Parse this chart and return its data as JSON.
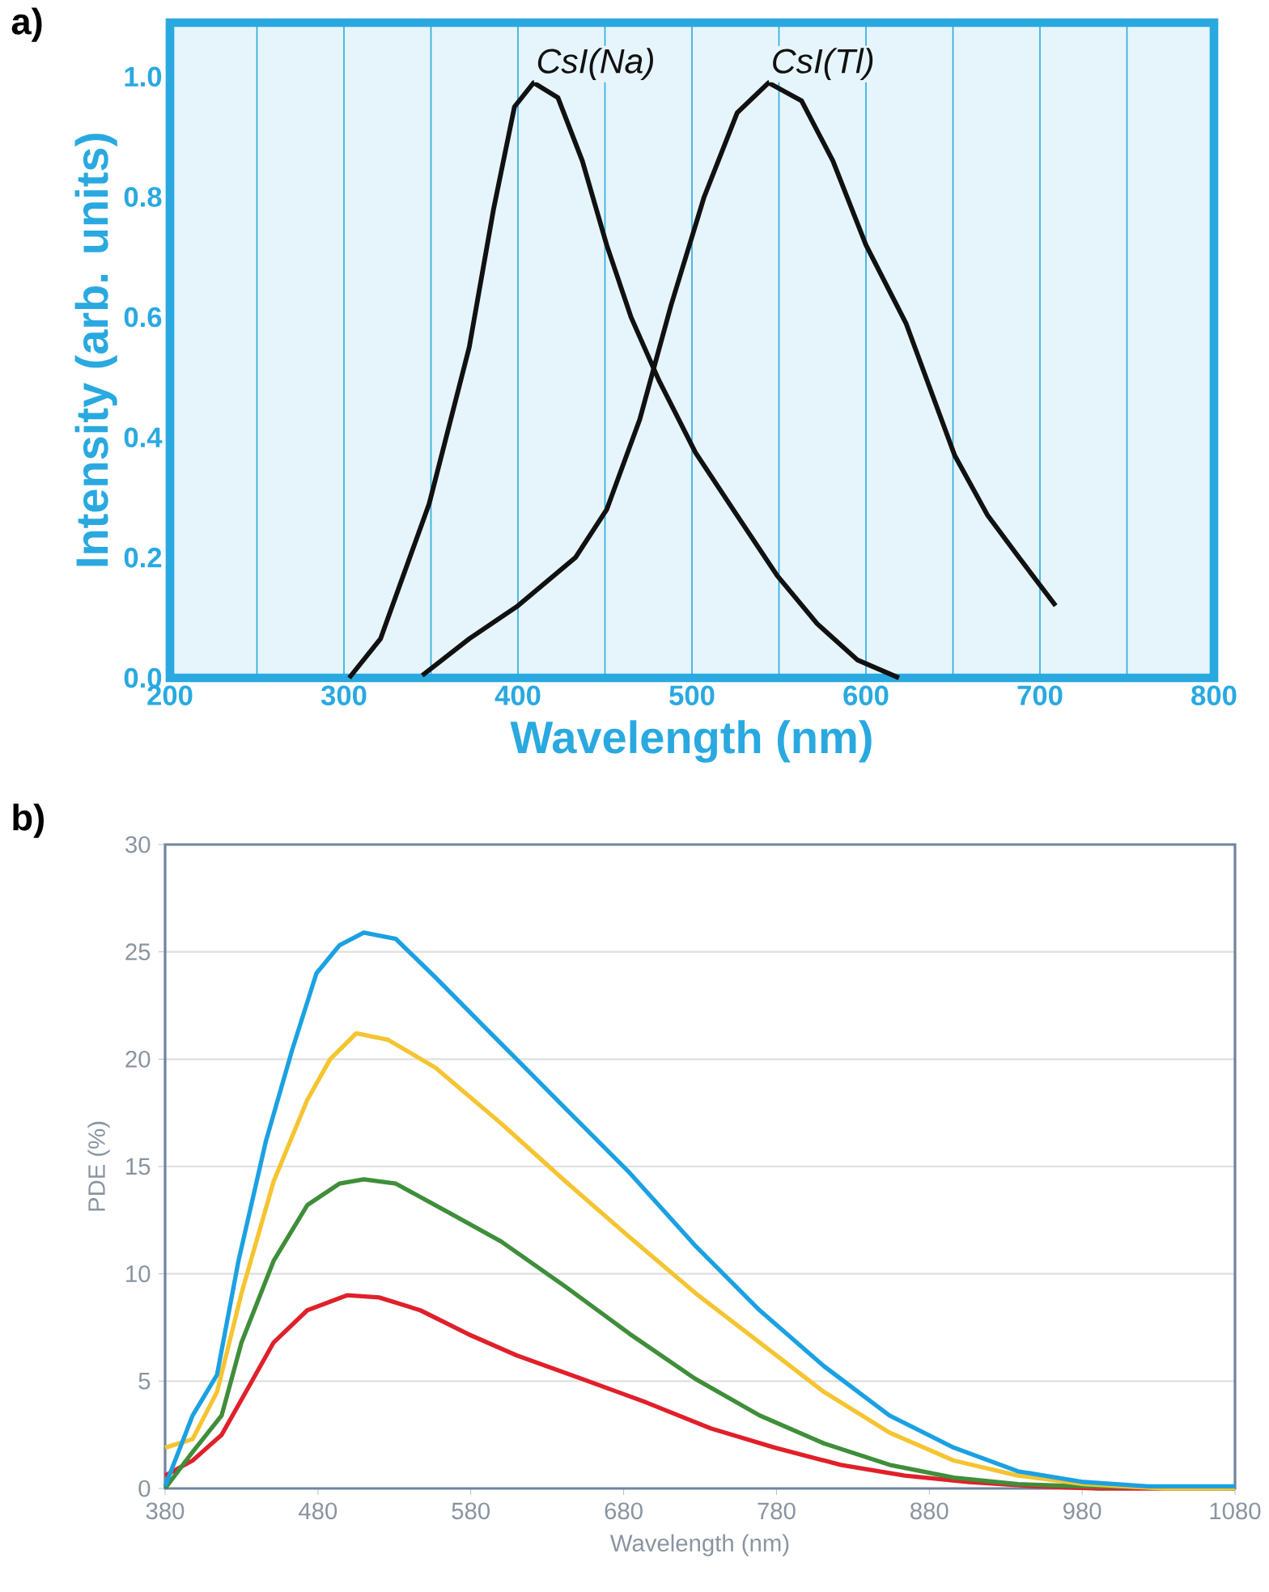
{
  "chart_data": [
    {
      "type": "line",
      "title": "a)",
      "xlabel": "Wavelength (nm)",
      "ylabel": "Intensity (arb. units)",
      "xlim": [
        200,
        800
      ],
      "ylim": [
        0,
        1.09
      ],
      "xticks": [
        200,
        {
          "value": 250,
          "label": null
        },
        300,
        {
          "value": 350,
          "label": null
        },
        400,
        {
          "value": 450,
          "label": null
        },
        500,
        {
          "value": 550,
          "label": null
        },
        600,
        {
          "value": 650,
          "label": null
        },
        700,
        {
          "value": 750,
          "label": null
        },
        800
      ],
      "yticks": [
        {
          "value": 0,
          "label": "0.0"
        },
        0.2,
        0.4,
        0.6,
        0.8,
        {
          "value": 1,
          "label": "1.0"
        }
      ],
      "grid": "x",
      "series": [
        {
          "name": "CsI(Na)",
          "color": "#111111",
          "x": [
            303,
            321,
            349,
            372,
            386,
            398,
            409,
            423,
            437,
            451,
            465,
            481,
            502,
            526,
            549,
            572,
            595,
            619
          ],
          "values": [
            0,
            0.065,
            0.29,
            0.55,
            0.78,
            0.95,
            0.99,
            0.965,
            0.86,
            0.72,
            0.6,
            0.495,
            0.375,
            0.27,
            0.17,
            0.09,
            0.03,
            0
          ]
        },
        {
          "name": "CsI(Tl)",
          "color": "#111111",
          "x": [
            345,
            372,
            400,
            433,
            451,
            470,
            488,
            507,
            526,
            544,
            563,
            581,
            600,
            623,
            651,
            670,
            688,
            709
          ],
          "values": [
            0.004,
            0.065,
            0.12,
            0.2,
            0.28,
            0.43,
            0.62,
            0.8,
            0.94,
            0.99,
            0.96,
            0.86,
            0.72,
            0.59,
            0.37,
            0.27,
            0.2,
            0.12
          ]
        }
      ]
    },
    {
      "type": "line",
      "title": "b)",
      "xlabel": "Wavelength (nm)",
      "ylabel": "PDE (%)",
      "xlim": [
        380,
        1080
      ],
      "ylim": [
        0,
        30
      ],
      "xticks": [
        380,
        480,
        580,
        680,
        780,
        880,
        980,
        1080
      ],
      "yticks": [
        0,
        5,
        10,
        15,
        20,
        25,
        30
      ],
      "grid": "y",
      "series": [
        {
          "color": "#e0202a",
          "x": [
            380,
            398,
            417,
            436,
            451,
            473,
            499,
            520,
            547,
            578,
            610,
            653,
            695,
            737,
            779,
            822,
            864,
            906,
            949,
            991,
            1080
          ],
          "values": [
            0.6,
            1.3,
            2.5,
            4.9,
            6.8,
            8.3,
            9.0,
            8.9,
            8.3,
            7.2,
            6.2,
            5.1,
            4.0,
            2.8,
            1.9,
            1.1,
            0.6,
            0.3,
            0.1,
            0,
            0
          ]
        },
        {
          "color": "#3f8e3a",
          "x": [
            380,
            398,
            417,
            430,
            451,
            473,
            494,
            510,
            531,
            567,
            600,
            642,
            684,
            727,
            769,
            811,
            854,
            896,
            938,
            981,
            1080
          ],
          "values": [
            0,
            1.7,
            3.4,
            6.8,
            10.6,
            13.2,
            14.2,
            14.4,
            14.2,
            12.8,
            11.5,
            9.4,
            7.2,
            5.1,
            3.4,
            2.1,
            1.1,
            0.5,
            0.2,
            0.1,
            0
          ]
        },
        {
          "color": "#f5c431",
          "x": [
            380,
            398,
            414,
            430,
            451,
            473,
            488,
            505,
            526,
            557,
            600,
            642,
            684,
            727,
            769,
            811,
            854,
            896,
            938,
            981,
            1034,
            1080
          ],
          "values": [
            1.9,
            2.3,
            4.5,
            9.1,
            14.3,
            18.1,
            20.0,
            21.2,
            20.9,
            19.6,
            17.0,
            14.3,
            11.7,
            9.1,
            6.8,
            4.5,
            2.6,
            1.3,
            0.6,
            0.2,
            0,
            0
          ]
        },
        {
          "color": "#1ba1e2",
          "x": [
            380,
            398,
            414,
            428,
            446,
            463,
            479,
            494,
            510,
            531,
            557,
            589,
            610,
            642,
            684,
            727,
            769,
            811,
            854,
            896,
            938,
            981,
            1023,
            1080
          ],
          "values": [
            0.1,
            3.4,
            5.3,
            10.6,
            16.2,
            20.4,
            24.0,
            25.3,
            25.9,
            25.6,
            23.8,
            21.5,
            20.0,
            17.7,
            14.7,
            11.3,
            8.3,
            5.7,
            3.4,
            1.9,
            0.8,
            0.3,
            0.1,
            0.1
          ]
        }
      ]
    }
  ]
}
